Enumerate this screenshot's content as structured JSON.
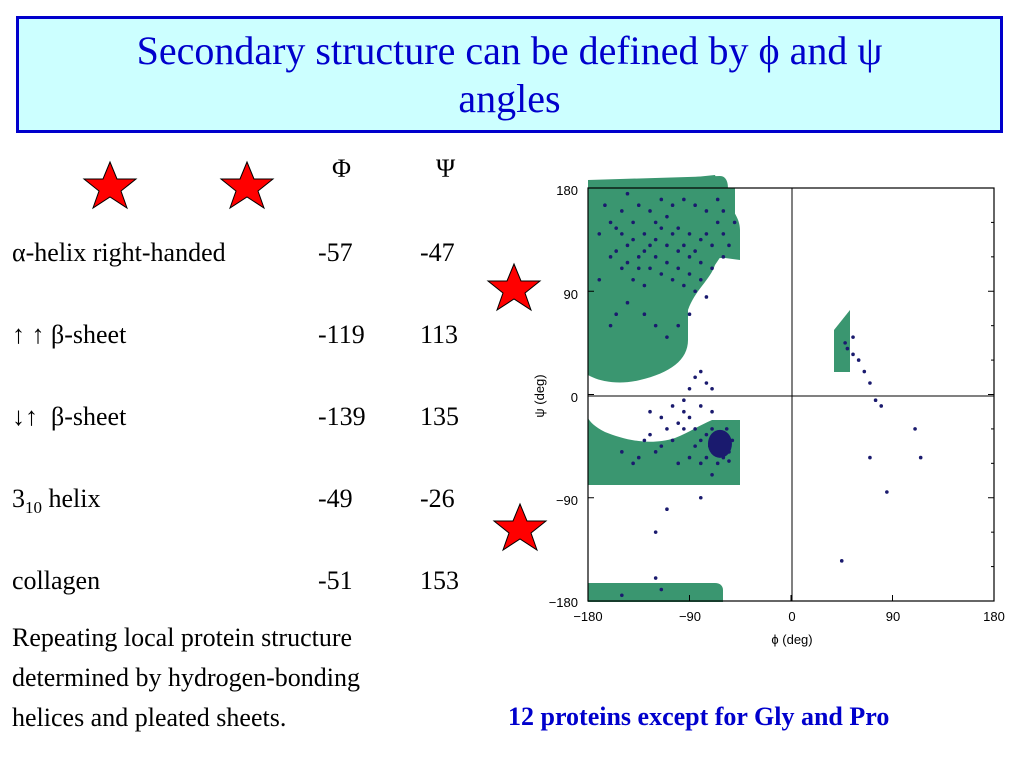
{
  "title": {
    "line1": "Secondary structure can be defined by ϕ and ψ",
    "line2": "angles"
  },
  "table": {
    "header": {
      "phi": "Φ",
      "psi": "Ψ"
    },
    "rows": [
      {
        "label_prefix": "α",
        "label_rest": "-helix right-handed",
        "phi": "-57",
        "psi": "-47"
      },
      {
        "label_prefix": "↑ ↑ β",
        "label_rest": "-sheet",
        "phi": "-119",
        "psi": "113"
      },
      {
        "label_prefix": "↓↑  β",
        "label_rest": "-sheet",
        "phi": "-139",
        "psi": "135"
      },
      {
        "label_main": "3",
        "label_sub": "10",
        "label_rest": " helix",
        "phi": "-49",
        "psi": "-26"
      },
      {
        "label_rest": "collagen",
        "phi": "-51",
        "psi": "153"
      }
    ]
  },
  "description": {
    "line1": "Repeating local protein structure",
    "line2": "determined by hydrogen-bonding",
    "line3": "helices and pleated sheets."
  },
  "caption": "12 proteins except for Gly and Pro",
  "plot": {
    "xlabel": "ϕ (deg)",
    "ylabel": "ψ (deg)",
    "xticks": [
      "−180",
      "−90",
      "0",
      "90",
      "180"
    ],
    "yticks": [
      "180",
      "90",
      "0",
      "−90",
      "−180"
    ]
  },
  "chart_data": {
    "type": "scatter",
    "xlabel": "ϕ (deg)",
    "ylabel": "ψ (deg)",
    "xlim": [
      -180,
      180
    ],
    "ylim": [
      -180,
      180
    ],
    "xticks": [
      -180,
      -90,
      0,
      90,
      180
    ],
    "yticks": [
      -180,
      -90,
      0,
      90,
      180
    ],
    "points": [
      [
        -150,
        160
      ],
      [
        -140,
        150
      ],
      [
        -130,
        140
      ],
      [
        -120,
        135
      ],
      [
        -110,
        130
      ],
      [
        -100,
        125
      ],
      [
        -90,
        120
      ],
      [
        -80,
        115
      ],
      [
        -145,
        130
      ],
      [
        -135,
        120
      ],
      [
        -125,
        110
      ],
      [
        -115,
        105
      ],
      [
        -105,
        100
      ],
      [
        -95,
        95
      ],
      [
        -85,
        90
      ],
      [
        -75,
        85
      ],
      [
        -155,
        145
      ],
      [
        -160,
        120
      ],
      [
        -150,
        110
      ],
      [
        -140,
        100
      ],
      [
        -130,
        95
      ],
      [
        -120,
        150
      ],
      [
        -110,
        155
      ],
      [
        -100,
        145
      ],
      [
        -90,
        140
      ],
      [
        -80,
        135
      ],
      [
        -70,
        130
      ],
      [
        -65,
        150
      ],
      [
        -75,
        160
      ],
      [
        -85,
        165
      ],
      [
        -95,
        170
      ],
      [
        -105,
        165
      ],
      [
        -115,
        170
      ],
      [
        -125,
        160
      ],
      [
        -135,
        165
      ],
      [
        -145,
        175
      ],
      [
        -60,
        120
      ],
      [
        -70,
        110
      ],
      [
        -80,
        100
      ],
      [
        -90,
        105
      ],
      [
        -100,
        110
      ],
      [
        -110,
        115
      ],
      [
        -120,
        120
      ],
      [
        -130,
        125
      ],
      [
        -140,
        135
      ],
      [
        -150,
        140
      ],
      [
        -160,
        150
      ],
      [
        -165,
        165
      ],
      [
        -60,
        140
      ],
      [
        -55,
        130
      ],
      [
        -50,
        150
      ],
      [
        -60,
        160
      ],
      [
        -65,
        170
      ],
      [
        -75,
        140
      ],
      [
        -85,
        125
      ],
      [
        -95,
        130
      ],
      [
        -105,
        140
      ],
      [
        -115,
        145
      ],
      [
        -125,
        130
      ],
      [
        -135,
        110
      ],
      [
        -145,
        115
      ],
      [
        -155,
        125
      ],
      [
        -170,
        140
      ],
      [
        -170,
        100
      ],
      [
        -160,
        60
      ],
      [
        -155,
        70
      ],
      [
        -145,
        80
      ],
      [
        -130,
        70
      ],
      [
        -120,
        60
      ],
      [
        -110,
        50
      ],
      [
        -100,
        60
      ],
      [
        -90,
        70
      ],
      [
        -80,
        20
      ],
      [
        -75,
        10
      ],
      [
        -70,
        5
      ],
      [
        -85,
        15
      ],
      [
        -90,
        5
      ],
      [
        -95,
        -5
      ],
      [
        -80,
        -10
      ],
      [
        -70,
        -15
      ],
      [
        -65,
        -35
      ],
      [
        -60,
        -40
      ],
      [
        -62,
        -45
      ],
      [
        -68,
        -38
      ],
      [
        -58,
        -48
      ],
      [
        -64,
        -42
      ],
      [
        -70,
        -30
      ],
      [
        -55,
        -50
      ],
      [
        -75,
        -35
      ],
      [
        -60,
        -55
      ],
      [
        -66,
        -50
      ],
      [
        -72,
        -45
      ],
      [
        -52,
        -40
      ],
      [
        -57,
        -30
      ],
      [
        -80,
        -40
      ],
      [
        -85,
        -30
      ],
      [
        -90,
        -20
      ],
      [
        -95,
        -30
      ],
      [
        -100,
        -25
      ],
      [
        -105,
        -40
      ],
      [
        -110,
        -30
      ],
      [
        -115,
        -45
      ],
      [
        -120,
        -50
      ],
      [
        -125,
        -35
      ],
      [
        -130,
        -40
      ],
      [
        -135,
        -55
      ],
      [
        -140,
        -60
      ],
      [
        -150,
        -50
      ],
      [
        -100,
        -60
      ],
      [
        -90,
        -55
      ],
      [
        -80,
        -60
      ],
      [
        -70,
        -70
      ],
      [
        -95,
        -15
      ],
      [
        -105,
        -10
      ],
      [
        -115,
        -20
      ],
      [
        -125,
        -15
      ],
      [
        -85,
        -45
      ],
      [
        -75,
        -55
      ],
      [
        -65,
        -60
      ],
      [
        -55,
        -58
      ],
      [
        -110,
        -100
      ],
      [
        -120,
        -120
      ],
      [
        -150,
        -175
      ],
      [
        -80,
        -90
      ],
      [
        -120,
        -160
      ],
      [
        -115,
        -170
      ],
      [
        50,
        40
      ],
      [
        55,
        50
      ],
      [
        60,
        30
      ],
      [
        65,
        20
      ],
      [
        70,
        10
      ],
      [
        75,
        -5
      ],
      [
        80,
        -10
      ],
      [
        110,
        -30
      ],
      [
        115,
        -55
      ],
      [
        70,
        -55
      ],
      [
        85,
        -85
      ],
      [
        45,
        -145
      ],
      [
        55,
        35
      ],
      [
        48,
        45
      ]
    ],
    "allowed_regions": [
      "beta region: phi -180 to -45, psi 90 to 180",
      "alpha region: phi -180 to -45, psi -60 to -10",
      "left-handed helix region: phi 40 to 50, psi 20 to 90",
      "bottom strip: phi -180 to -60, psi -180 to -165"
    ]
  }
}
